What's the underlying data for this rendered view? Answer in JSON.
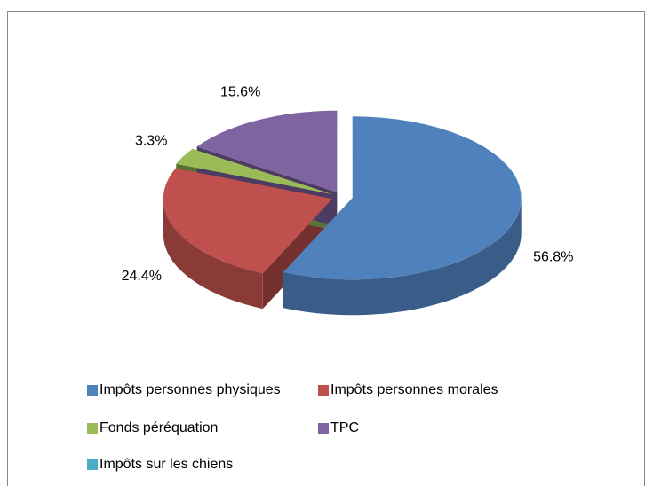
{
  "chart_data": {
    "type": "pie",
    "categories": [
      "Impôts personnes physiques",
      "Impôts personnes morales",
      "Fonds péréquation",
      "TPC",
      "Impôts sur les chiens"
    ],
    "values": [
      56.8,
      24.4,
      3.3,
      15.6,
      0
    ],
    "value_labels": [
      "56.8%",
      "24.4%",
      "3.3%",
      "15.6%",
      null
    ],
    "colors": [
      "#4f81bd",
      "#c0504d",
      "#9bbb59",
      "#8064a2",
      "#4bacc6"
    ],
    "legend": "bottom"
  }
}
